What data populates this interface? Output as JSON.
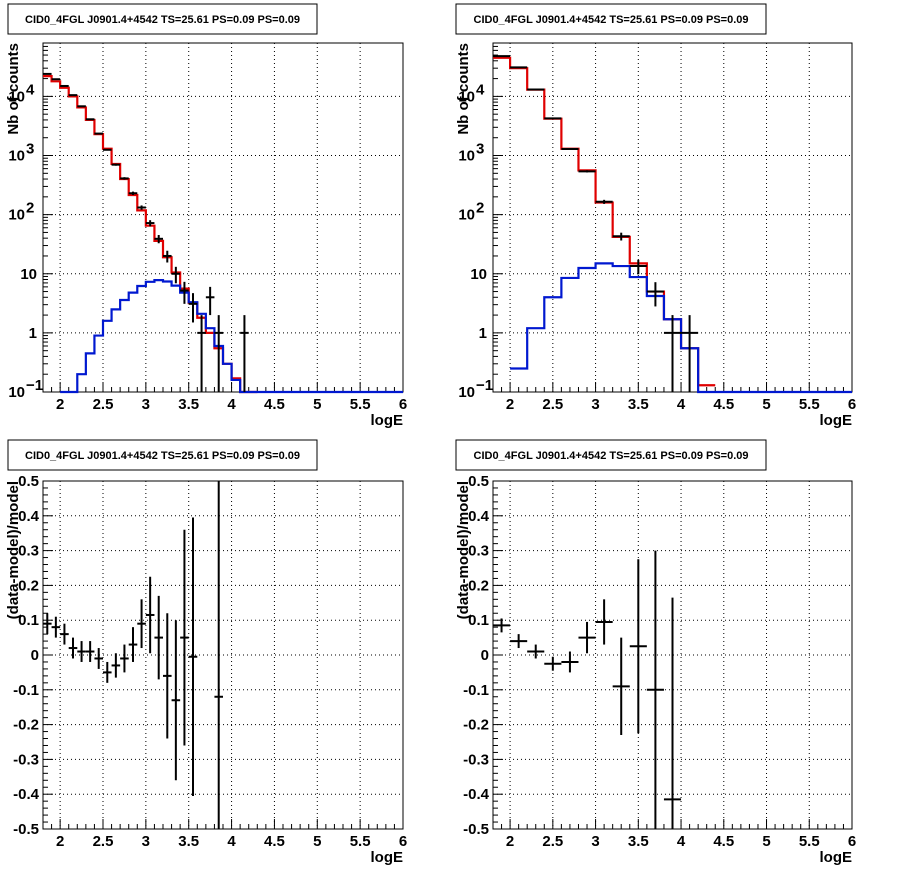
{
  "panel_title": "CID0_4FGL J0901.4+4542 TS=25.61 PS=0.09 PS=0.09",
  "chart_data": [
    {
      "type": "line",
      "yscale": "log",
      "xlabel": "logE",
      "ylabel": "Nb of counts",
      "xlim": [
        1.8,
        6
      ],
      "ylim": [
        0.1,
        80000
      ],
      "xticks": [
        "2",
        "2.5",
        "3",
        "3.5",
        "4",
        "4.5",
        "5",
        "5.5",
        "6"
      ],
      "yticks": [
        "10^-1",
        "1",
        "10",
        "10^2",
        "10^3",
        "10^4"
      ],
      "grid": true,
      "bin_width": 0.1,
      "series": [
        {
          "color": "#e00000",
          "style": "hist",
          "x": [
            1.8,
            1.9,
            2.0,
            2.1,
            2.2,
            2.3,
            2.4,
            2.5,
            2.6,
            2.7,
            2.8,
            2.9,
            3.0,
            3.1,
            3.2,
            3.3,
            3.4,
            3.5,
            3.6,
            3.7,
            3.8,
            3.9,
            4.0,
            4.1,
            4.2
          ],
          "values": [
            22000,
            18000,
            14000,
            10000,
            6500,
            4000,
            2300,
            1300,
            720,
            400,
            215,
            118,
            65,
            36,
            19,
            10.5,
            5.6,
            3.2,
            1.8,
            1.0,
            0.55,
            0.3,
            0.17,
            0.1,
            0.06
          ]
        },
        {
          "color": "#0018d0",
          "style": "hist",
          "x": [
            2.0,
            2.1,
            2.2,
            2.3,
            2.4,
            2.5,
            2.6,
            2.7,
            2.8,
            2.9,
            3.0,
            3.1,
            3.2,
            3.3,
            3.4,
            3.5,
            3.6,
            3.7,
            3.8,
            3.9,
            4.0,
            4.1,
            4.2,
            4.3,
            4.4,
            4.5,
            4.6,
            4.7,
            4.8,
            4.9,
            5.0,
            5.1,
            5.2,
            5.3,
            5.4,
            5.5,
            5.6,
            5.7,
            5.8,
            5.9
          ],
          "values": [
            0.06,
            0.1,
            0.2,
            0.45,
            0.9,
            1.6,
            2.5,
            3.6,
            4.8,
            6.2,
            7.3,
            7.8,
            7.4,
            6.3,
            4.8,
            3.3,
            2.1,
            1.2,
            0.6,
            0.3,
            0.16,
            0.1,
            0.1,
            0.1,
            0.1,
            0.1,
            0.1,
            0.1,
            0.1,
            0.1,
            0.1,
            0.1,
            0.1,
            0.1,
            0.1,
            0.1,
            0.1,
            0.1,
            0.1,
            0.1
          ]
        },
        {
          "color": "#000000",
          "style": "errorbar",
          "x": [
            1.85,
            1.95,
            2.05,
            2.15,
            2.25,
            2.35,
            2.45,
            2.55,
            2.65,
            2.75,
            2.85,
            2.95,
            3.05,
            3.15,
            3.25,
            3.35,
            3.45,
            3.55,
            3.65,
            3.75,
            3.85,
            3.95,
            4.05,
            4.15
          ],
          "values": [
            24000,
            19500,
            15000,
            10500,
            6800,
            4100,
            2350,
            1250,
            700,
            410,
            230,
            132,
            72,
            39,
            20,
            10,
            5.2,
            3.1,
            1.0,
            4.0,
            1.0,
            0,
            0,
            1.0
          ],
          "err_low": [
            200,
            180,
            150,
            120,
            90,
            70,
            50,
            35,
            27,
            20,
            15,
            11,
            8.5,
            6.2,
            4.5,
            3.1,
            2.1,
            1.6,
            0.95,
            2.0,
            0.95,
            0,
            0,
            0.95
          ],
          "err_high": [
            200,
            180,
            150,
            120,
            90,
            70,
            50,
            35,
            27,
            20,
            15,
            11,
            8.5,
            6.2,
            4.5,
            3.1,
            2.1,
            1.6,
            1.0,
            2.0,
            1.0,
            0,
            0,
            1.0
          ]
        }
      ]
    },
    {
      "type": "line",
      "yscale": "log",
      "xlabel": "logE",
      "ylabel": "Nb of counts",
      "xlim": [
        1.8,
        6
      ],
      "ylim": [
        0.1,
        80000
      ],
      "xticks": [
        "2",
        "2.5",
        "3",
        "3.5",
        "4",
        "4.5",
        "5",
        "5.5",
        "6"
      ],
      "yticks": [
        "10^-1",
        "1",
        "10",
        "10^2",
        "10^3",
        "10^4"
      ],
      "grid": true,
      "bin_width": 0.2,
      "series": [
        {
          "color": "#e00000",
          "style": "hist",
          "x": [
            1.8,
            2.0,
            2.2,
            2.4,
            2.6,
            2.8,
            3.0,
            3.2,
            3.4,
            3.6,
            3.8,
            4.0,
            4.2
          ],
          "values": [
            45000,
            30000,
            13000,
            4200,
            1300,
            560,
            160,
            42,
            15,
            5.0,
            1.7,
            0.55,
            0.13
          ]
        },
        {
          "color": "#0018d0",
          "style": "hist",
          "x": [
            2.0,
            2.2,
            2.4,
            2.6,
            2.8,
            3.0,
            3.2,
            3.4,
            3.6,
            3.8,
            4.0,
            4.2,
            4.4,
            4.6,
            4.8,
            5.0,
            5.2,
            5.4,
            5.6,
            5.8
          ],
          "values": [
            0.25,
            1.2,
            4.0,
            8.5,
            12.5,
            15.0,
            13.5,
            8.8,
            4.2,
            1.7,
            0.55,
            0.1,
            0.1,
            0.1,
            0.1,
            0.1,
            0.1,
            0.1,
            0.1,
            0.1
          ]
        },
        {
          "color": "#000000",
          "style": "errorbar",
          "x": [
            1.9,
            2.1,
            2.3,
            2.5,
            2.7,
            2.9,
            3.1,
            3.3,
            3.5,
            3.7,
            3.9,
            4.1
          ],
          "values": [
            48000,
            31000,
            13100,
            4250,
            1290,
            540,
            165,
            43,
            13.5,
            5.0,
            1.0,
            1.0
          ],
          "err_low": [
            220,
            180,
            115,
            65,
            36,
            23,
            13,
            6.5,
            3.7,
            2.2,
            0.95,
            0.95
          ],
          "err_high": [
            220,
            180,
            115,
            65,
            36,
            23,
            13,
            6.5,
            3.7,
            2.2,
            1.0,
            1.0
          ]
        }
      ]
    },
    {
      "type": "scatter",
      "xlabel": "logE",
      "ylabel": "(data-model)/model",
      "xlim": [
        1.8,
        6
      ],
      "ylim": [
        -0.5,
        0.5
      ],
      "xticks": [
        "2",
        "2.5",
        "3",
        "3.5",
        "4",
        "4.5",
        "5",
        "5.5",
        "6"
      ],
      "yticks": [
        "-0.5",
        "-0.4",
        "-0.3",
        "-0.2",
        "-0.1",
        "0",
        "0.1",
        "0.2",
        "0.3",
        "0.4",
        "0.5"
      ],
      "grid": true,
      "bin_width": 0.1,
      "series": [
        {
          "color": "#000000",
          "style": "errorbar",
          "x": [
            1.85,
            1.95,
            2.05,
            2.15,
            2.25,
            2.35,
            2.45,
            2.55,
            2.65,
            2.75,
            2.85,
            2.95,
            3.05,
            3.15,
            3.25,
            3.35,
            3.45,
            3.55,
            3.85
          ],
          "values": [
            0.09,
            0.08,
            0.06,
            0.02,
            0.01,
            0.01,
            -0.01,
            -0.05,
            -0.03,
            -0.01,
            0.03,
            0.09,
            0.115,
            0.05,
            -0.06,
            -0.13,
            0.05,
            -0.005,
            -0.12
          ],
          "err_low": [
            0.03,
            0.03,
            0.03,
            0.03,
            0.03,
            0.03,
            0.03,
            0.03,
            0.035,
            0.04,
            0.05,
            0.07,
            0.11,
            0.12,
            0.18,
            0.23,
            0.31,
            0.4,
            0.62
          ],
          "err_high": [
            0.03,
            0.03,
            0.03,
            0.03,
            0.03,
            0.03,
            0.03,
            0.03,
            0.035,
            0.04,
            0.05,
            0.07,
            0.11,
            0.12,
            0.18,
            0.23,
            0.31,
            0.4,
            0.62
          ]
        }
      ]
    },
    {
      "type": "scatter",
      "xlabel": "logE",
      "ylabel": "(data-model)/model",
      "xlim": [
        1.8,
        6
      ],
      "ylim": [
        -0.5,
        0.5
      ],
      "xticks": [
        "2",
        "2.5",
        "3",
        "3.5",
        "4",
        "4.5",
        "5",
        "5.5",
        "6"
      ],
      "yticks": [
        "-0.5",
        "-0.4",
        "-0.3",
        "-0.2",
        "-0.1",
        "0",
        "0.1",
        "0.2",
        "0.3",
        "0.4",
        "0.5"
      ],
      "grid": true,
      "bin_width": 0.2,
      "series": [
        {
          "color": "#000000",
          "style": "errorbar",
          "x": [
            1.9,
            2.1,
            2.3,
            2.5,
            2.7,
            2.9,
            3.1,
            3.3,
            3.5,
            3.7,
            3.9
          ],
          "values": [
            0.085,
            0.04,
            0.01,
            -0.025,
            -0.02,
            0.05,
            0.095,
            -0.09,
            0.025,
            -0.1,
            -0.415
          ],
          "err_low": [
            0.02,
            0.02,
            0.02,
            0.02,
            0.03,
            0.045,
            0.065,
            0.14,
            0.25,
            0.45,
            0.6
          ],
          "err_high": [
            0.02,
            0.02,
            0.02,
            0.02,
            0.03,
            0.045,
            0.065,
            0.14,
            0.25,
            0.4,
            0.58
          ]
        }
      ]
    }
  ]
}
